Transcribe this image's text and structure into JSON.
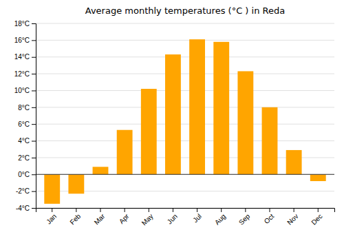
{
  "chart_data": {
    "type": "bar",
    "title": "Average monthly temperatures (°C ) in Reda",
    "categories": [
      "Jan",
      "Feb",
      "Mar",
      "Apr",
      "May",
      "Jun",
      "Jul",
      "Aug",
      "Sep",
      "Oct",
      "Nov",
      "Dec"
    ],
    "values": [
      -3.5,
      -2.3,
      0.9,
      5.3,
      10.2,
      14.3,
      16.1,
      15.8,
      12.3,
      8.0,
      2.9,
      -0.8
    ],
    "color": "#FFA500",
    "ylim": [
      -4,
      18
    ],
    "yticks": [
      {
        "value": -4,
        "label": "-4°C"
      },
      {
        "value": -2,
        "label": "-2°C"
      },
      {
        "value": 0,
        "label": "0°C"
      },
      {
        "value": 2,
        "label": "2°C"
      },
      {
        "value": 4,
        "label": "4°C"
      },
      {
        "value": 6,
        "label": "6°C"
      },
      {
        "value": 8,
        "label": "8°C"
      },
      {
        "value": 10,
        "label": "10°C"
      },
      {
        "value": 12,
        "label": "12°C"
      },
      {
        "value": 14,
        "label": "14°C"
      },
      {
        "value": 16,
        "label": "16°C"
      },
      {
        "value": 18,
        "label": "18°C"
      }
    ],
    "grid": true
  }
}
